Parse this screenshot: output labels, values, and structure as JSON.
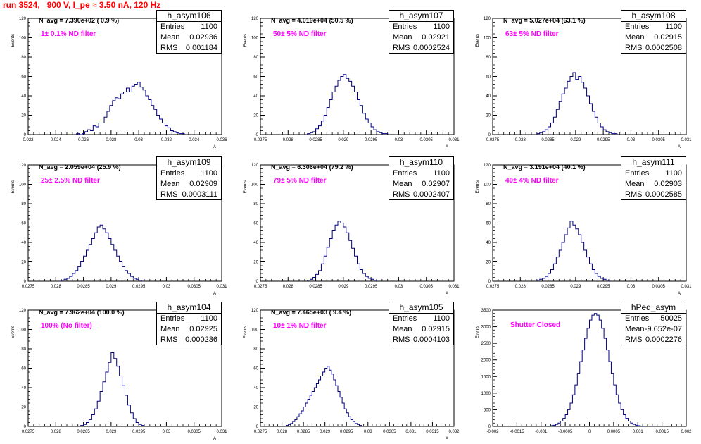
{
  "title": "run 3524,   900 V, I_pe ≈ 3.50 nA, 120 Hz",
  "colors": {
    "title": "#ff0000",
    "histogram": "#000080",
    "filter_text": "#ff00ff"
  },
  "chart_data": [
    {
      "type": "bar",
      "name": "h_asym106",
      "stats": {
        "entries": "1100",
        "mean": "0.02936",
        "rms": "0.001184"
      },
      "navg": "N_avg = 7.390e+02 ( 0.9 %)",
      "filter": "1± 0.1% ND filter",
      "ylabel": "Events",
      "xlabel": "A",
      "xlim": [
        0.022,
        0.036
      ],
      "ylim": [
        0,
        120
      ],
      "xticks": [
        "0.022",
        "0.024",
        "0.026",
        "0.028",
        "0.03",
        "0.032",
        "0.034",
        "0.036"
      ],
      "yticks": [
        "0",
        "20",
        "40",
        "60",
        "80",
        "100",
        "120"
      ],
      "bins": {
        "start": 0.0255,
        "width": 0.0002,
        "values": [
          1,
          0,
          1,
          3,
          5,
          4,
          9,
          8,
          12,
          12,
          18,
          24,
          30,
          35,
          38,
          37,
          42,
          44,
          48,
          44,
          50,
          52,
          54,
          49,
          46,
          40,
          36,
          30,
          26,
          20,
          16,
          12,
          9,
          7,
          4,
          3,
          2,
          1,
          1
        ]
      }
    },
    {
      "type": "bar",
      "name": "h_asym107",
      "stats": {
        "entries": "1100",
        "mean": "0.02921",
        "rms": "0.0002524"
      },
      "navg": "N_avg = 4.019e+04 (50.5 %)",
      "filter": "50± 5% ND filter",
      "ylabel": "Events",
      "xlabel": "A",
      "xlim": [
        0.0275,
        0.031
      ],
      "ylim": [
        0,
        120
      ],
      "xticks": [
        "0.0275",
        "0.028",
        "0.0285",
        "0.029",
        "0.0295",
        "0.03",
        "0.0305",
        "0.031"
      ],
      "yticks": [
        "0",
        "20",
        "40",
        "60",
        "80",
        "100",
        "120"
      ],
      "bins": {
        "start": 0.02835,
        "width": 5e-05,
        "values": [
          1,
          2,
          3,
          6,
          9,
          14,
          20,
          28,
          36,
          44,
          50,
          56,
          60,
          62,
          58,
          55,
          50,
          44,
          36,
          30,
          22,
          16,
          12,
          8,
          5,
          3,
          2,
          1,
          1
        ]
      }
    },
    {
      "type": "bar",
      "name": "h_asym108",
      "stats": {
        "entries": "1100",
        "mean": "0.02915",
        "rms": "0.0002508"
      },
      "navg": "N_avg = 5.027e+04 (63.1 %)",
      "filter": "63± 5% ND filter",
      "ylabel": "Events",
      "xlabel": "A",
      "xlim": [
        0.0275,
        0.031
      ],
      "ylim": [
        0,
        120
      ],
      "xticks": [
        "0.0275",
        "0.028",
        "0.0285",
        "0.029",
        "0.0295",
        "0.03",
        "0.0305",
        "0.031"
      ],
      "yticks": [
        "0",
        "20",
        "40",
        "60",
        "80",
        "100",
        "120"
      ],
      "bins": {
        "start": 0.0283,
        "width": 5e-05,
        "values": [
          1,
          2,
          3,
          5,
          8,
          12,
          18,
          26,
          34,
          42,
          48,
          55,
          60,
          64,
          57,
          60,
          54,
          48,
          40,
          32,
          24,
          18,
          12,
          8,
          5,
          3,
          2,
          1,
          1
        ]
      }
    },
    {
      "type": "bar",
      "name": "h_asym109",
      "stats": {
        "entries": "1100",
        "mean": "0.02909",
        "rms": "0.0003111"
      },
      "navg": "N_avg = 2.059e+04 (25.9 %)",
      "filter": "25± 2.5% ND filter",
      "ylabel": "Events",
      "xlabel": "A",
      "xlim": [
        0.0275,
        0.031
      ],
      "ylim": [
        0,
        120
      ],
      "xticks": [
        "0.0275",
        "0.028",
        "0.0285",
        "0.029",
        "0.0295",
        "0.03",
        "0.0305",
        "0.031"
      ],
      "yticks": [
        "0",
        "20",
        "40",
        "60",
        "80",
        "100",
        "120"
      ],
      "bins": {
        "start": 0.0281,
        "width": 5e-05,
        "values": [
          1,
          2,
          3,
          5,
          8,
          11,
          15,
          20,
          26,
          32,
          38,
          44,
          50,
          56,
          58,
          54,
          50,
          44,
          38,
          32,
          26,
          20,
          15,
          11,
          8,
          5,
          3,
          2,
          1
        ]
      }
    },
    {
      "type": "bar",
      "name": "h_asym110",
      "stats": {
        "entries": "1100",
        "mean": "0.02907",
        "rms": "0.0002407"
      },
      "navg": "N_avg = 6.306e+04 (79.2 %)",
      "filter": "79± 5% ND filter",
      "ylabel": "Events",
      "xlabel": "A",
      "xlim": [
        0.0275,
        0.031
      ],
      "ylim": [
        0,
        120
      ],
      "xticks": [
        "0.0275",
        "0.028",
        "0.0285",
        "0.029",
        "0.0295",
        "0.03",
        "0.0305",
        "0.031"
      ],
      "yticks": [
        "0",
        "20",
        "40",
        "60",
        "80",
        "100",
        "120"
      ],
      "bins": {
        "start": 0.02835,
        "width": 5e-05,
        "values": [
          1,
          2,
          4,
          7,
          11,
          18,
          26,
          35,
          44,
          52,
          58,
          62,
          60,
          56,
          50,
          42,
          34,
          26,
          18,
          12,
          8,
          5,
          3,
          2,
          1
        ]
      }
    },
    {
      "type": "bar",
      "name": "h_asym111",
      "stats": {
        "entries": "1100",
        "mean": "0.02903",
        "rms": "0.0002585"
      },
      "navg": "N_avg = 3.191e+04 (40.1 %)",
      "filter": "40± 4% ND filter",
      "ylabel": "Events",
      "xlabel": "A",
      "xlim": [
        0.0275,
        0.031
      ],
      "ylim": [
        0,
        120
      ],
      "xticks": [
        "0.0275",
        "0.028",
        "0.0285",
        "0.029",
        "0.0295",
        "0.03",
        "0.0305",
        "0.031"
      ],
      "yticks": [
        "0",
        "20",
        "40",
        "60",
        "80",
        "100",
        "120"
      ],
      "bins": {
        "start": 0.0283,
        "width": 5e-05,
        "values": [
          1,
          2,
          3,
          5,
          8,
          12,
          18,
          25,
          32,
          40,
          48,
          55,
          62,
          58,
          54,
          48,
          40,
          32,
          25,
          18,
          12,
          8,
          5,
          3,
          2,
          1
        ]
      }
    },
    {
      "type": "bar",
      "name": "h_asym104",
      "stats": {
        "entries": "1100",
        "mean": "0.02925",
        "rms": "0.000236"
      },
      "navg": "N_avg = 7.962e+04 (100.0 %)",
      "filter": "100% (No filter)",
      "ylabel": "Events",
      "xlabel": "A",
      "xlim": [
        0.0275,
        0.031
      ],
      "ylim": [
        0,
        120
      ],
      "xticks": [
        "0.0275",
        "0.028",
        "0.0285",
        "0.029",
        "0.0295",
        "0.03",
        "0.0305",
        "0.031"
      ],
      "yticks": [
        "0",
        "20",
        "40",
        "60",
        "80",
        "100",
        "120"
      ],
      "bins": {
        "start": 0.02845,
        "width": 5e-05,
        "values": [
          1,
          2,
          4,
          7,
          12,
          18,
          26,
          36,
          46,
          56,
          66,
          76,
          70,
          62,
          52,
          42,
          32,
          22,
          14,
          8,
          4,
          2,
          1
        ]
      }
    },
    {
      "type": "bar",
      "name": "h_asym105",
      "stats": {
        "entries": "1100",
        "mean": "0.02915",
        "rms": "0.0004103"
      },
      "navg": "N_avg = 7.465e+03 ( 9.4 %)",
      "filter": "10± 1% ND filter",
      "ylabel": "Events",
      "xlabel": "A",
      "xlim": [
        0.0275,
        0.032
      ],
      "ylim": [
        0,
        120
      ],
      "xticks": [
        "0.0275",
        "0.028",
        "0.0285",
        "0.029",
        "0.0295",
        "0.03",
        "0.0305",
        "0.031",
        "0.0315",
        "0.032"
      ],
      "yticks": [
        "0",
        "20",
        "40",
        "60",
        "80",
        "100",
        "120"
      ],
      "bins": {
        "start": 0.0281,
        "width": 5e-05,
        "values": [
          1,
          2,
          3,
          5,
          7,
          10,
          13,
          16,
          20,
          24,
          28,
          32,
          36,
          40,
          44,
          48,
          52,
          56,
          60,
          62,
          58,
          54,
          48,
          42,
          36,
          30,
          24,
          18,
          14,
          10,
          7,
          5,
          3,
          2,
          1
        ]
      }
    },
    {
      "type": "bar",
      "name": "hPed_asym",
      "stats": {
        "entries": "50025",
        "mean": "-9.652e-07",
        "rms": "0.0002276"
      },
      "navg": "",
      "filter": "Shutter Closed",
      "ylabel": "Events",
      "xlabel": "",
      "xlim": [
        -0.002,
        0.002
      ],
      "ylim": [
        0,
        3500
      ],
      "xticks": [
        "-0.002",
        "-0.0015",
        "-0.001",
        "-0.0005",
        "0",
        "0.0005",
        "0.001",
        "0.0015",
        "0.002"
      ],
      "yticks": [
        "0",
        "500",
        "1000",
        "1500",
        "2000",
        "2500",
        "3000",
        "3500"
      ],
      "bins": {
        "start": -0.0009,
        "width": 5e-05,
        "values": [
          5,
          10,
          20,
          35,
          60,
          100,
          160,
          240,
          350,
          500,
          700,
          950,
          1250,
          1600,
          1950,
          2300,
          2650,
          2950,
          3200,
          3350,
          3400,
          3350,
          3200,
          2950,
          2650,
          2300,
          1950,
          1600,
          1250,
          950,
          700,
          500,
          350,
          240,
          160,
          100,
          60,
          35,
          20,
          10,
          5
        ]
      }
    }
  ]
}
